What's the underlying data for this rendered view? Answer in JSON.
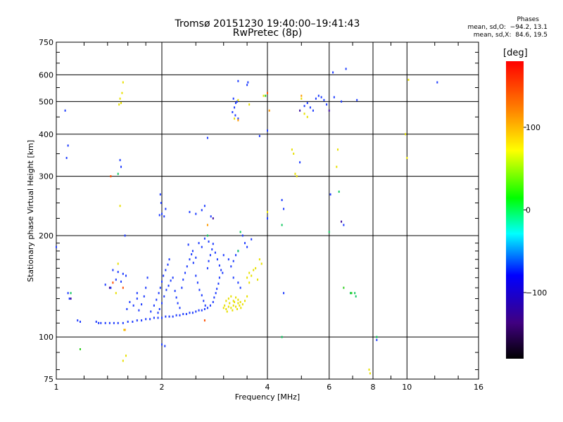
{
  "chart_data": {
    "type": "scatter",
    "title": "Tromsø 20151230 19:40:00–19:41:43",
    "subtitle": "RwPretec (8p)",
    "xlabel": "Frequency [MHz]",
    "ylabel": "Stationary phase Virtual Height [km]",
    "x_scale": "log",
    "y_scale": "log",
    "xlim": [
      1,
      16
    ],
    "ylim": [
      75,
      750
    ],
    "x_ticks": [
      1,
      2,
      4,
      6,
      8,
      10,
      16
    ],
    "y_ticks": [
      75,
      100,
      200,
      300,
      400,
      500,
      600,
      750
    ],
    "grid": true,
    "colorbar": {
      "label": "[deg]",
      "range": [
        -180,
        180
      ],
      "ticks": [
        100,
        0,
        -100
      ]
    },
    "phase_stats": {
      "heading": "Phases",
      "line_o": "mean, sd,O:  −94.2, 13.1",
      "line_x": "mean, sd,X:  84.6, 19.5"
    },
    "series": [
      {
        "points": [
          [
            1.3,
            111
          ],
          [
            1.32,
            110
          ],
          [
            1.34,
            110
          ],
          [
            1.38,
            110
          ],
          [
            1.42,
            110
          ],
          [
            1.46,
            110
          ],
          [
            1.5,
            110
          ],
          [
            1.55,
            110
          ],
          [
            1.6,
            111
          ],
          [
            1.65,
            111
          ],
          [
            1.7,
            112
          ],
          [
            1.75,
            112
          ],
          [
            1.8,
            113
          ],
          [
            1.85,
            113
          ],
          [
            1.9,
            114
          ],
          [
            1.95,
            114
          ],
          [
            2.0,
            114
          ],
          [
            2.05,
            115
          ],
          [
            2.1,
            115
          ],
          [
            2.15,
            115
          ],
          [
            2.2,
            116
          ],
          [
            2.25,
            116
          ],
          [
            2.3,
            117
          ],
          [
            2.35,
            117
          ],
          [
            2.4,
            118
          ],
          [
            2.45,
            118
          ],
          [
            2.5,
            119
          ],
          [
            2.55,
            120
          ],
          [
            2.6,
            120
          ],
          [
            2.65,
            121
          ],
          [
            2.7,
            122
          ],
          [
            2.75,
            124
          ],
          [
            2.8,
            127
          ],
          [
            2.82,
            131
          ],
          [
            2.85,
            135
          ],
          [
            2.87,
            139
          ],
          [
            2.9,
            144
          ],
          [
            2.92,
            150
          ],
          [
            1.15,
            112
          ],
          [
            1.17,
            111
          ],
          [
            1.86,
            119
          ],
          [
            1.9,
            124
          ],
          [
            1.93,
            129
          ],
          [
            1.96,
            135
          ],
          [
            1.98,
            140
          ],
          [
            2.0,
            146
          ],
          [
            2.02,
            152
          ],
          [
            2.05,
            158
          ],
          [
            2.08,
            164
          ],
          [
            2.1,
            170
          ],
          [
            1.95,
            118
          ],
          [
            1.97,
            121
          ],
          [
            2.0,
            126
          ],
          [
            2.03,
            132
          ],
          [
            2.06,
            138
          ],
          [
            2.09,
            142
          ],
          [
            2.12,
            147
          ],
          [
            2.15,
            150
          ],
          [
            2.18,
            137
          ],
          [
            2.2,
            131
          ],
          [
            2.22,
            126
          ],
          [
            2.25,
            122
          ],
          [
            2.28,
            140
          ],
          [
            2.3,
            148
          ],
          [
            2.33,
            155
          ],
          [
            2.36,
            162
          ],
          [
            2.4,
            170
          ],
          [
            2.43,
            176
          ],
          [
            2.46,
            166
          ],
          [
            2.5,
            152
          ],
          [
            2.53,
            145
          ],
          [
            2.56,
            138
          ],
          [
            2.6,
            133
          ],
          [
            2.63,
            128
          ],
          [
            2.66,
            124
          ],
          [
            2.7,
            160
          ],
          [
            2.72,
            168
          ],
          [
            2.75,
            175
          ],
          [
            2.78,
            182
          ],
          [
            2.8,
            189
          ],
          [
            2.84,
            178
          ],
          [
            2.88,
            170
          ],
          [
            2.92,
            163
          ],
          [
            2.95,
            158
          ],
          [
            2.98,
            155
          ],
          [
            3.0,
            175
          ],
          [
            2.55,
            190
          ],
          [
            2.6,
            185
          ],
          [
            2.65,
            196
          ],
          [
            2.72,
            192
          ],
          [
            2.5,
            172
          ],
          [
            2.45,
            180
          ],
          [
            2.38,
            188
          ],
          [
            1.8,
            140
          ],
          [
            1.78,
            132
          ],
          [
            1.82,
            150
          ],
          [
            1.75,
            125
          ],
          [
            1.72,
            120
          ],
          [
            1.45,
            158
          ],
          [
            1.5,
            156
          ],
          [
            1.55,
            154
          ],
          [
            1.58,
            152
          ],
          [
            1.48,
            148
          ],
          [
            1.53,
            146
          ],
          [
            1.43,
            140
          ],
          [
            1.38,
            143
          ],
          [
            1.62,
            127
          ],
          [
            1.66,
            124
          ],
          [
            1.59,
            121
          ],
          [
            1.7,
            130
          ],
          [
            1.97,
            230
          ],
          [
            2.0,
            232
          ],
          [
            2.03,
            228
          ],
          [
            1.99,
            250
          ],
          [
            1.98,
            265
          ],
          [
            2.05,
            240
          ],
          [
            2.4,
            235
          ],
          [
            2.5,
            232
          ],
          [
            2.6,
            238
          ],
          [
            2.65,
            245
          ],
          [
            2.76,
            228
          ],
          [
            3.18,
            465
          ],
          [
            3.22,
            480
          ],
          [
            3.25,
            495
          ],
          [
            3.2,
            510
          ],
          [
            3.28,
            500
          ],
          [
            3.24,
            455
          ],
          [
            3.3,
            445
          ],
          [
            3.5,
            560
          ],
          [
            3.52,
            570
          ],
          [
            3.3,
            575
          ],
          [
            5.1,
            485
          ],
          [
            5.2,
            495
          ],
          [
            5.3,
            480
          ],
          [
            5.4,
            470
          ],
          [
            5.5,
            510
          ],
          [
            5.6,
            520
          ],
          [
            5.7,
            515
          ],
          [
            5.8,
            505
          ],
          [
            5.9,
            490
          ],
          [
            6.2,
            515
          ],
          [
            6.5,
            500
          ],
          [
            7.2,
            505
          ],
          [
            3.4,
            200
          ],
          [
            3.45,
            190
          ],
          [
            3.5,
            185
          ],
          [
            3.3,
            180
          ],
          [
            3.25,
            175
          ],
          [
            3.2,
            168
          ],
          [
            3.6,
            195
          ],
          [
            3.15,
            162
          ],
          [
            3.1,
            170
          ],
          [
            3.2,
            150
          ],
          [
            3.3,
            145
          ],
          [
            3.35,
            140
          ],
          [
            1.07,
            340
          ],
          [
            1.08,
            370
          ],
          [
            1.06,
            470
          ],
          [
            1.52,
            335
          ],
          [
            1.53,
            320
          ],
          [
            4.0,
            410
          ],
          [
            4.4,
            255
          ],
          [
            4.45,
            240
          ],
          [
            4.95,
            330
          ],
          [
            6.05,
            265
          ],
          [
            6.15,
            610
          ],
          [
            6.7,
            625
          ],
          [
            6.6,
            215
          ],
          [
            8.2,
            98
          ],
          [
            12.2,
            570
          ],
          [
            1.0,
            185
          ],
          [
            1.08,
            135
          ],
          [
            1.09,
            130
          ],
          [
            1.57,
            200
          ],
          [
            2.7,
            390
          ],
          [
            3.8,
            395
          ],
          [
            4.45,
            135
          ],
          [
            2.0,
            95
          ],
          [
            2.04,
            94
          ],
          [
            1.7,
            135
          ],
          [
            4.0,
            225
          ]
        ],
        "color": "#1e3cff"
      },
      {
        "points": [
          [
            3.0,
            122
          ],
          [
            3.02,
            124
          ],
          [
            3.05,
            121
          ],
          [
            3.07,
            119
          ],
          [
            3.1,
            123
          ],
          [
            3.12,
            126
          ],
          [
            3.15,
            122
          ],
          [
            3.18,
            120
          ],
          [
            3.2,
            124
          ],
          [
            3.22,
            127
          ],
          [
            3.25,
            123
          ],
          [
            3.28,
            121
          ],
          [
            3.3,
            126
          ],
          [
            3.33,
            124
          ],
          [
            3.36,
            122
          ],
          [
            3.1,
            130
          ],
          [
            3.15,
            132
          ],
          [
            3.2,
            128
          ],
          [
            3.25,
            131
          ],
          [
            3.3,
            129
          ],
          [
            3.35,
            127
          ],
          [
            3.05,
            128
          ],
          [
            3.4,
            125
          ],
          [
            3.45,
            128
          ],
          [
            3.5,
            132
          ],
          [
            3.55,
            145
          ],
          [
            3.6,
            152
          ],
          [
            3.65,
            158
          ],
          [
            3.7,
            160
          ],
          [
            3.75,
            148
          ],
          [
            3.8,
            170
          ],
          [
            3.85,
            165
          ],
          [
            3.5,
            150
          ],
          [
            3.55,
            155
          ],
          [
            1.52,
            510
          ],
          [
            1.53,
            495
          ],
          [
            1.54,
            530
          ],
          [
            1.55,
            570
          ],
          [
            1.51,
            490
          ],
          [
            3.22,
            445
          ],
          [
            3.55,
            490
          ],
          [
            3.9,
            520
          ],
          [
            5.0,
            510
          ],
          [
            5.1,
            460
          ],
          [
            5.2,
            450
          ],
          [
            4.7,
            360
          ],
          [
            4.75,
            350
          ],
          [
            4.8,
            305
          ],
          [
            4.85,
            300
          ],
          [
            6.35,
            360
          ],
          [
            6.3,
            320
          ],
          [
            9.9,
            400
          ],
          [
            10.0,
            340
          ],
          [
            10.1,
            580
          ],
          [
            1.55,
            85
          ],
          [
            1.58,
            88
          ],
          [
            1.52,
            245
          ],
          [
            1.5,
            165
          ],
          [
            1.56,
            105
          ],
          [
            1.48,
            135
          ],
          [
            7.8,
            80
          ],
          [
            7.85,
            78
          ],
          [
            4.0,
            235
          ],
          [
            3.3,
            505
          ]
        ],
        "color": "#e8e000"
      },
      {
        "points": [
          [
            3.3,
            180
          ],
          [
            4.4,
            215
          ],
          [
            6.0,
            205
          ],
          [
            6.4,
            270
          ],
          [
            6.9,
            135
          ],
          [
            7.1,
            135
          ],
          [
            7.15,
            132
          ],
          [
            1.1,
            135
          ],
          [
            8.2,
            100
          ],
          [
            4.4,
            100
          ],
          [
            2.7,
            200
          ],
          [
            3.35,
            205
          ],
          [
            1.5,
            305
          ]
        ],
        "color": "#10c860"
      },
      {
        "points": [
          [
            1.17,
            92
          ],
          [
            3.95,
            520
          ],
          [
            6.6,
            140
          ],
          [
            6.95,
            135
          ]
        ],
        "color": "#30d020"
      },
      {
        "points": [
          [
            1.43,
            300
          ],
          [
            1.45,
            145
          ],
          [
            1.55,
            140
          ],
          [
            4.0,
            530
          ],
          [
            2.65,
            112
          ]
        ],
        "color": "#ff5000"
      },
      {
        "points": [
          [
            3.3,
            440
          ],
          [
            4.05,
            470
          ],
          [
            1.57,
            105
          ],
          [
            5.0,
            520
          ],
          [
            2.7,
            215
          ]
        ],
        "color": "#ff9a00"
      },
      {
        "points": [
          [
            6.5,
            220
          ],
          [
            1.1,
            130
          ],
          [
            6.0,
            470
          ],
          [
            4.95,
            470
          ],
          [
            2.8,
            225
          ],
          [
            1.42,
            140
          ]
        ],
        "color": "#4010a0"
      }
    ]
  }
}
